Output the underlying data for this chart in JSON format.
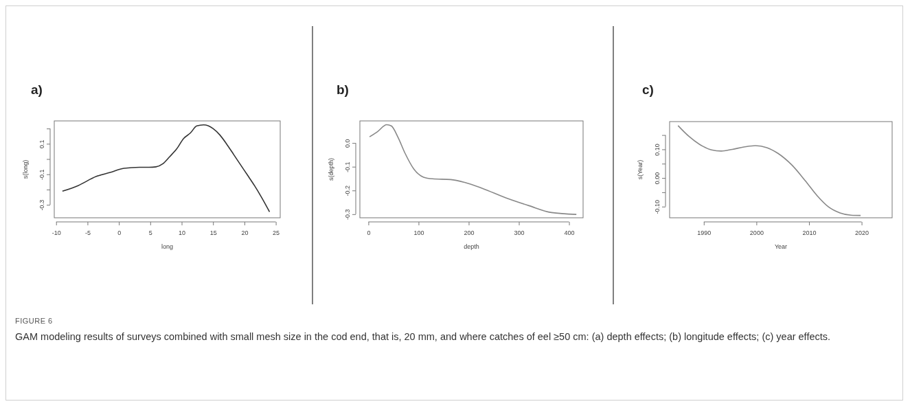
{
  "chart_data": [
    {
      "type": "line",
      "title": "a)",
      "xlabel": "long",
      "ylabel": "s(long)",
      "xlim": [
        -10.3,
        25.7
      ],
      "ylim": [
        -0.385,
        0.25
      ],
      "xticks": [
        -10,
        -5,
        0,
        5,
        10,
        15,
        20,
        25
      ],
      "yticks": [
        -0.3,
        {
          "value": -0.2,
          "label": null
        },
        -0.1,
        {
          "value": 0,
          "label": null
        },
        0.1,
        {
          "value": 0.2,
          "label": null
        }
      ],
      "series": [
        {
          "color": "#333333",
          "x": [
            -9.0,
            -6.5,
            -3.6,
            -1.4,
            0.8,
            3.3,
            4.8,
            5.9,
            7.0,
            8.1,
            9.2,
            10.3,
            11.4,
            12.4,
            13.5,
            15.0,
            16.1,
            17.2,
            18.3,
            19.4,
            20.5,
            21.6,
            22.7,
            24.0
          ],
          "values": [
            -0.211,
            -0.174,
            -0.114,
            -0.088,
            -0.061,
            -0.054,
            -0.054,
            -0.051,
            -0.031,
            0.016,
            0.066,
            0.134,
            0.171,
            0.217,
            0.224,
            0.2,
            0.157,
            0.096,
            0.029,
            -0.039,
            -0.106,
            -0.174,
            -0.249,
            -0.346
          ]
        }
      ],
      "annotations": [
        "FIGURE 6",
        "GAM modeling results of surveys combined with small mesh size in the cod end, that is, 20 mm, and where catches of eel ≥50 cm: (a) depth effects; (b) longitude effects; (c) year effects."
      ]
    },
    {
      "type": "line",
      "title": "b)",
      "xlabel": "depth",
      "ylabel": "s(depth)",
      "xlim": [
        -17,
        428
      ],
      "ylim": [
        -0.315,
        0.093
      ],
      "xticks": [
        0,
        100,
        200,
        300,
        400
      ],
      "yticks": [
        -0.3,
        -0.2,
        -0.1,
        {
          "value": 0,
          "label": "0.0"
        }
      ],
      "series": [
        {
          "color": "#888888",
          "x": [
            2.3,
            18.3,
            36.5,
            45.7,
            59,
            73,
            91,
            110,
            128,
            164,
            192,
            228,
            274,
            320,
            365,
            414.6
          ],
          "values": [
            0.026,
            0.048,
            0.077,
            0.072,
            0.024,
            -0.043,
            -0.111,
            -0.144,
            -0.151,
            -0.154,
            -0.166,
            -0.192,
            -0.231,
            -0.264,
            -0.293,
            -0.301
          ]
        }
      ]
    },
    {
      "type": "line",
      "title": "c)",
      "xlabel": "Year",
      "ylabel": "s(Year)",
      "xlim": [
        1983.5,
        2025.8
      ],
      "ylim": [
        -0.139,
        0.197
      ],
      "xticks": [
        1990,
        2000,
        2010,
        2020
      ],
      "yticks": [
        {
          "value": -0.1,
          "label": "-0.10"
        },
        {
          "value": -0.05,
          "label": null
        },
        {
          "value": 0,
          "label": "0.00"
        },
        {
          "value": 0.05,
          "label": null
        },
        {
          "value": 0.1,
          "label": "0.10"
        },
        {
          "value": 0.15,
          "label": null
        }
      ],
      "series": [
        {
          "color": "#888888",
          "x": [
            1985.1,
            1987.2,
            1989.8,
            1991.5,
            1993.3,
            1995.4,
            1997.6,
            1999.8,
            2002,
            2004.1,
            2006.7,
            2009.3,
            2011.5,
            2013.7,
            2015.9,
            2018,
            2019.8
          ],
          "values": [
            0.183,
            0.145,
            0.111,
            0.098,
            0.094,
            0.1,
            0.108,
            0.113,
            0.106,
            0.086,
            0.046,
            -0.01,
            -0.061,
            -0.101,
            -0.122,
            -0.13,
            -0.131
          ]
        }
      ]
    }
  ]
}
